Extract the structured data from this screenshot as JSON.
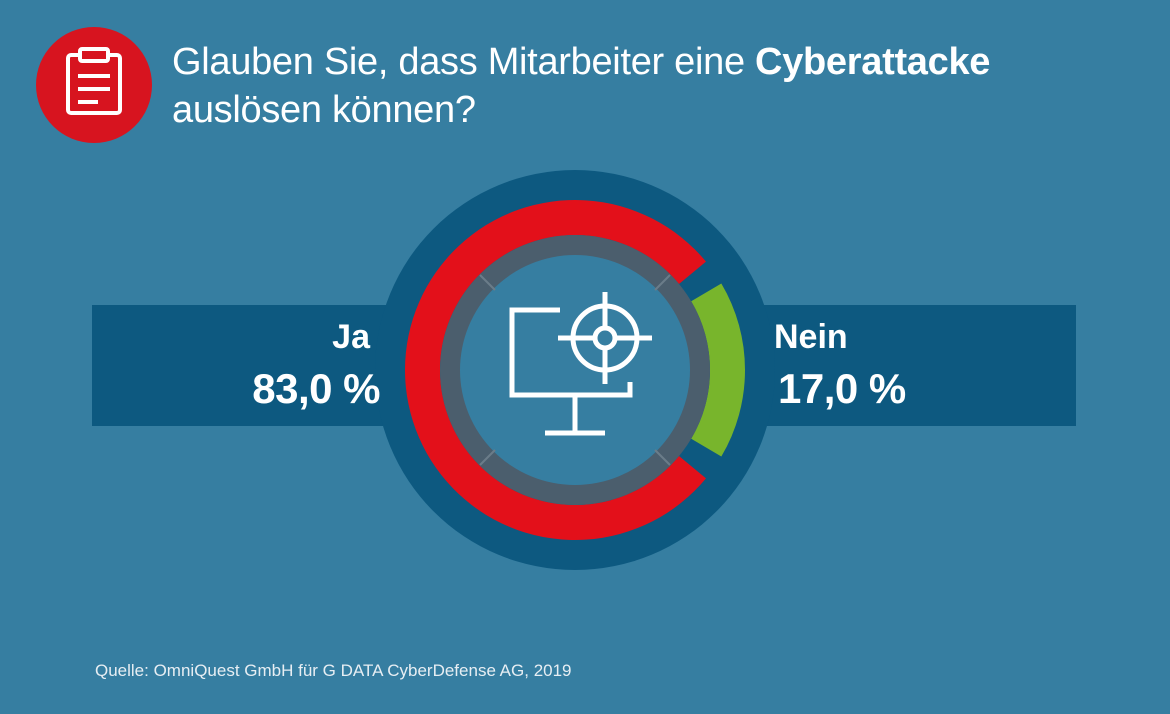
{
  "header": {
    "title_part1": "Glauben Sie, dass Mitarbeiter eine ",
    "title_bold": "Cyberattacke",
    "title_part2": "auslösen können?",
    "icon": "clipboard-icon"
  },
  "chart_data": {
    "type": "pie",
    "title": "Glauben Sie, dass Mitarbeiter eine Cyberattacke auslösen können?",
    "categories": [
      "Ja",
      "Nein"
    ],
    "values": [
      83.0,
      17.0
    ],
    "value_labels": [
      "83,0 %",
      "17,0 %"
    ],
    "colors": [
      "#e3101a",
      "#78b52c"
    ],
    "center_icon": "monitor-target-icon"
  },
  "footer": {
    "source": "Quelle: OmniQuest GmbH für G DATA CyberDefense AG, 2019"
  },
  "colors": {
    "background": "#367ea1",
    "band": "#0d5980",
    "ring_inner": "#4b5e6d",
    "badge": "#d7141f"
  }
}
